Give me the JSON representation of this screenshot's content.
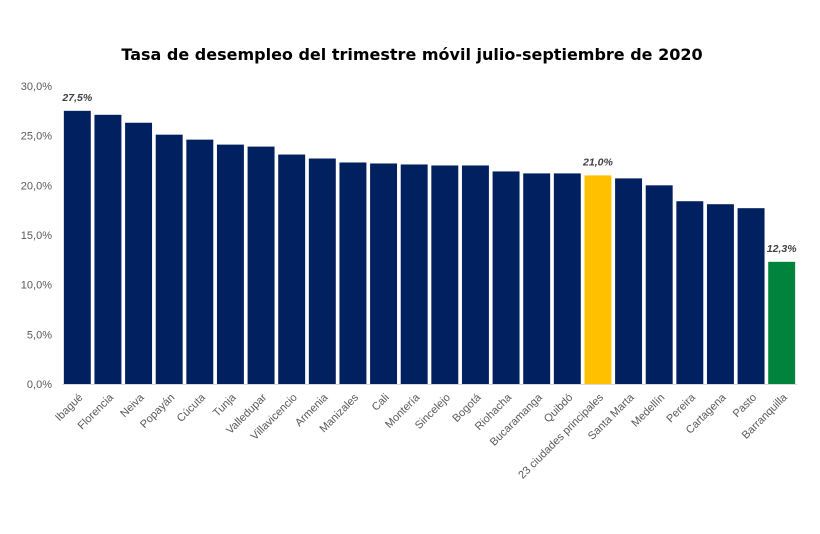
{
  "chart_data": {
    "type": "bar",
    "title": "Tasa de desempleo del trimestre móvil julio-septiembre de 2020",
    "xlabel": "",
    "ylabel": "",
    "ylim": [
      0,
      30
    ],
    "yticks": [
      0,
      5,
      10,
      15,
      20,
      25,
      30
    ],
    "ytick_labels": [
      "0,0%",
      "5,0%",
      "10,0%",
      "15,0%",
      "20,0%",
      "25,0%",
      "30,0%"
    ],
    "grid": false,
    "legend": "none",
    "categories": [
      "Ibagué",
      "Florencia",
      "Neiva",
      "Popayán",
      "Cúcuta",
      "Tunja",
      "Valledupar",
      "Villavicencio",
      "Armenia",
      "Manizales",
      "Cali",
      "Montería",
      "Sincelejo",
      "Bogotá",
      "Riohacha",
      "Bucaramanga",
      "Quibdó",
      "23 ciudades principales",
      "Santa Marta",
      "Medellín",
      "Pereira",
      "Cartagena",
      "Pasto",
      "Barranquilla"
    ],
    "values": [
      27.5,
      27.1,
      26.3,
      25.1,
      24.6,
      24.1,
      23.9,
      23.1,
      22.7,
      22.3,
      22.2,
      22.1,
      22.0,
      22.0,
      21.4,
      21.2,
      21.2,
      21.0,
      20.7,
      20.0,
      18.4,
      18.1,
      17.7,
      12.3
    ],
    "colors": {
      "default": "#002060",
      "highlight_total": "#FFC000",
      "highlight_min": "#00843D",
      "axis": "#D9D9D9"
    },
    "highlights": {
      "23 ciudades principales": "highlight_total",
      "Barranquilla": "highlight_min"
    },
    "data_labels": [
      {
        "category": "Ibagué",
        "text": "27,5%"
      },
      {
        "category": "23 ciudades principales",
        "text": "21,0%"
      },
      {
        "category": "Barranquilla",
        "text": "12,3%"
      }
    ]
  }
}
